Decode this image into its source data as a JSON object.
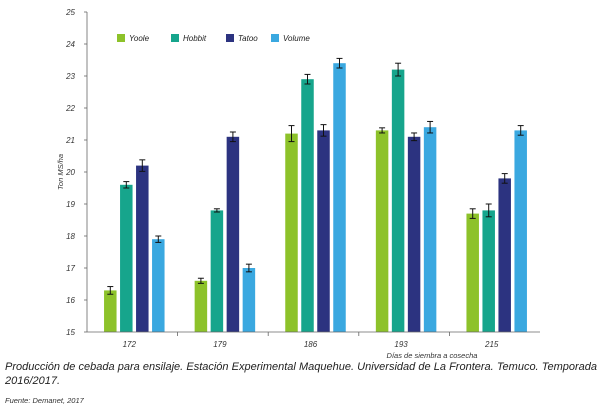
{
  "chart_data": {
    "type": "bar",
    "categories": [
      "172",
      "179",
      "186",
      "193",
      "215"
    ],
    "series": [
      {
        "name": "Yoole",
        "color": "#8dc22a",
        "values": [
          16.3,
          16.6,
          21.2,
          21.3,
          18.7
        ],
        "errors": [
          0.12,
          0.08,
          0.25,
          0.08,
          0.15
        ]
      },
      {
        "name": "Hobbit",
        "color": "#16a58c",
        "values": [
          19.6,
          18.8,
          22.9,
          23.2,
          18.8
        ],
        "errors": [
          0.1,
          0.05,
          0.15,
          0.2,
          0.2
        ]
      },
      {
        "name": "Tatoo",
        "color": "#2c3380",
        "values": [
          20.2,
          21.1,
          21.3,
          21.1,
          19.8
        ],
        "errors": [
          0.18,
          0.15,
          0.18,
          0.12,
          0.15
        ]
      },
      {
        "name": "Volume",
        "color": "#3aa8e0",
        "values": [
          17.9,
          17.0,
          23.4,
          21.4,
          21.3
        ],
        "errors": [
          0.1,
          0.12,
          0.15,
          0.18,
          0.15
        ]
      }
    ],
    "ylabel": "Ton MS/ha",
    "xlabel": "Días de siembra a cosecha",
    "ylim": [
      15,
      25
    ],
    "yticks": [
      "15",
      "16",
      "17",
      "18",
      "19",
      "20",
      "21",
      "22",
      "23",
      "24",
      "25"
    ],
    "grid": false,
    "legend": "top-left"
  },
  "caption": "Producción de cebada para ensilaje. Estación Experimental Maquehue. Universidad de La Frontera. Temuco. Temporada 2016/2017.",
  "source": "Fuente: Demanet, 2017"
}
